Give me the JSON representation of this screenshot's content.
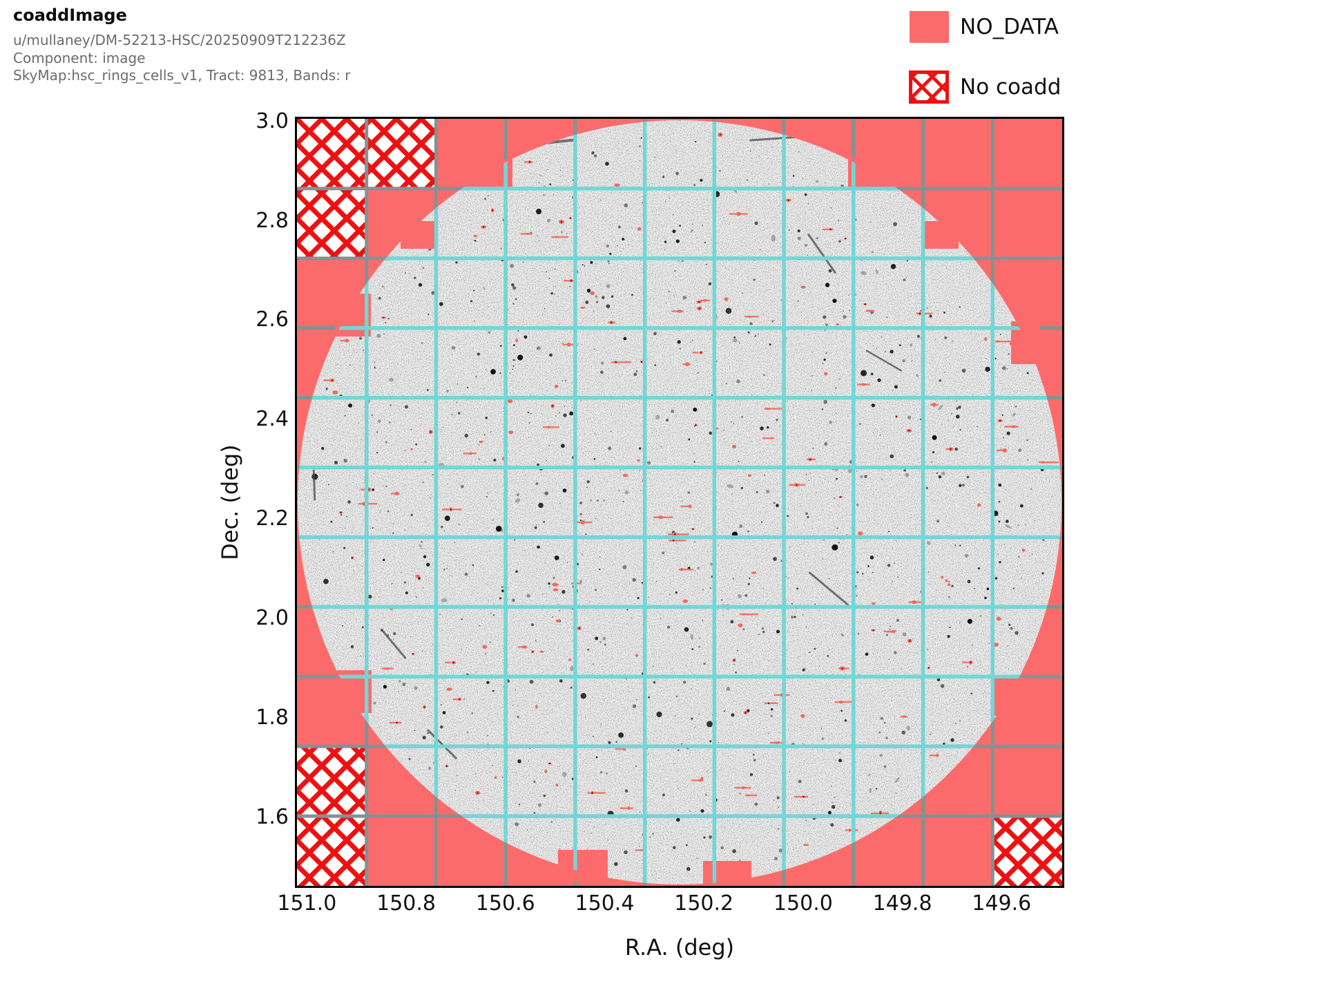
{
  "header": {
    "title": "coaddImage",
    "collection": "u/mullaney/DM-52213-HSC/20250909T212236Z",
    "component": "Component: image",
    "skymap_line": "SkyMap:hsc_rings_cells_v1, Tract: 9813, Bands: r"
  },
  "legend": {
    "no_data_label": "NO_DATA",
    "no_coadd_label": "No coadd"
  },
  "colors": {
    "no_data": "#fc6b6b",
    "hatch_red": "#ee1111",
    "grid_over_image": "#74d6d6",
    "grid_over_nodata": "#7f9494",
    "field_background": "#ededed",
    "defect_red": "#ee6a5c"
  },
  "chart_data": {
    "type": "heatmap",
    "title": "coaddImage",
    "subtitle": [
      "u/mullaney/DM-52213-HSC/20250909T212236Z",
      "Component: image",
      "SkyMap:hsc_rings_cells_v1, Tract: 9813, Bands: r"
    ],
    "xlabel": "R.A. (deg)",
    "ylabel": "Dec. (deg)",
    "x_ticks": [
      151.0,
      150.8,
      150.6,
      150.4,
      150.2,
      150.0,
      149.8,
      149.6
    ],
    "y_ticks": [
      3.0,
      2.8,
      2.6,
      2.4,
      2.2,
      2.0,
      1.8,
      1.6
    ],
    "xlim": [
      151.02,
      149.478
    ],
    "ylim": [
      1.4625,
      3.005
    ],
    "x_axis_inverted": true,
    "grid": {
      "patches_per_side": 11,
      "visible": true
    },
    "field": {
      "shape": "inscribed-circle",
      "content": "grayscale coadd image with noise speckle, red defect pixels and satellite trails"
    },
    "no_data_regions": "square corners outside circular coadd footprint",
    "no_coadd_patches_col_row": [
      [
        0,
        0
      ],
      [
        1,
        0
      ],
      [
        0,
        1
      ],
      [
        0,
        9
      ],
      [
        0,
        10
      ],
      [
        10,
        10
      ]
    ],
    "legend_entries": [
      "NO_DATA",
      "No coadd"
    ],
    "tract": 9813,
    "bands": "r",
    "skymap_name": "hsc_rings_cells_v1"
  }
}
